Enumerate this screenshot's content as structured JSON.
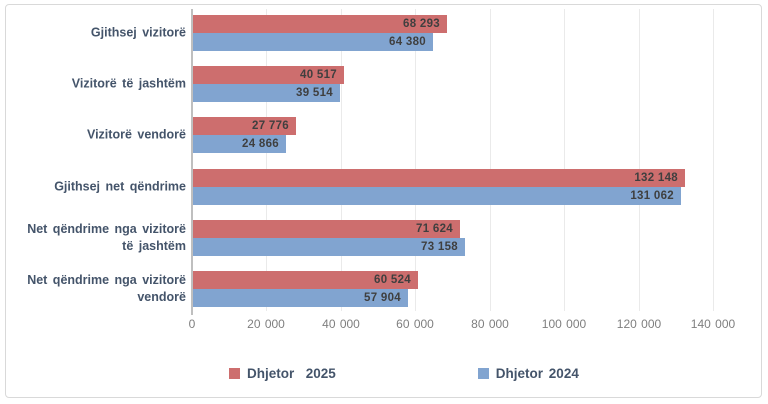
{
  "chart_data": {
    "type": "bar",
    "orientation": "horizontal",
    "title": "",
    "categories": [
      "Gjithsej vizitorë",
      "Vizitorë të jashtëm",
      "Vizitorë vendorë",
      "Gjithsej net qëndrime",
      "Net qëndrime nga vizitorë të jashtëm",
      "Net qëndrime nga vizitorë vendorë"
    ],
    "series": [
      {
        "name": "Dhjetor  2025",
        "color": "#cd6e6e",
        "values": [
          68293,
          40517,
          27776,
          132148,
          71624,
          60524
        ],
        "value_labels": [
          "68 293",
          "40 517",
          "27 776",
          "132 148",
          "71 624",
          "60 524"
        ]
      },
      {
        "name": "Dhjetor 2024",
        "color": "#81a4d0",
        "values": [
          64380,
          39514,
          24866,
          131062,
          73158,
          57904
        ],
        "value_labels": [
          "64 380",
          "39 514",
          "24 866",
          "131 062",
          "73 158",
          "57 904"
        ]
      }
    ],
    "xlim": [
      0,
      140000
    ],
    "xticks": [
      0,
      20000,
      40000,
      60000,
      80000,
      100000,
      120000,
      140000
    ],
    "xtick_labels": [
      "0",
      "20 000",
      "40 000",
      "60 000",
      "80 000",
      "100 000",
      "120 000",
      "140 000"
    ],
    "grid": true,
    "legend_position": "bottom",
    "legend": [
      {
        "label": "Dhjetor  2025",
        "color": "#cd6e6e"
      },
      {
        "label": "Dhjetor 2024",
        "color": "#81a4d0"
      }
    ],
    "colors": {
      "data_label_text": "#3f3f3f",
      "category_text": "#44546a",
      "tick_text": "#7f7f7f",
      "gridline": "#eaeaea",
      "axis_line": "#bfbfbf",
      "chart_border": "#d9d9d9",
      "background": "#ffffff"
    }
  }
}
